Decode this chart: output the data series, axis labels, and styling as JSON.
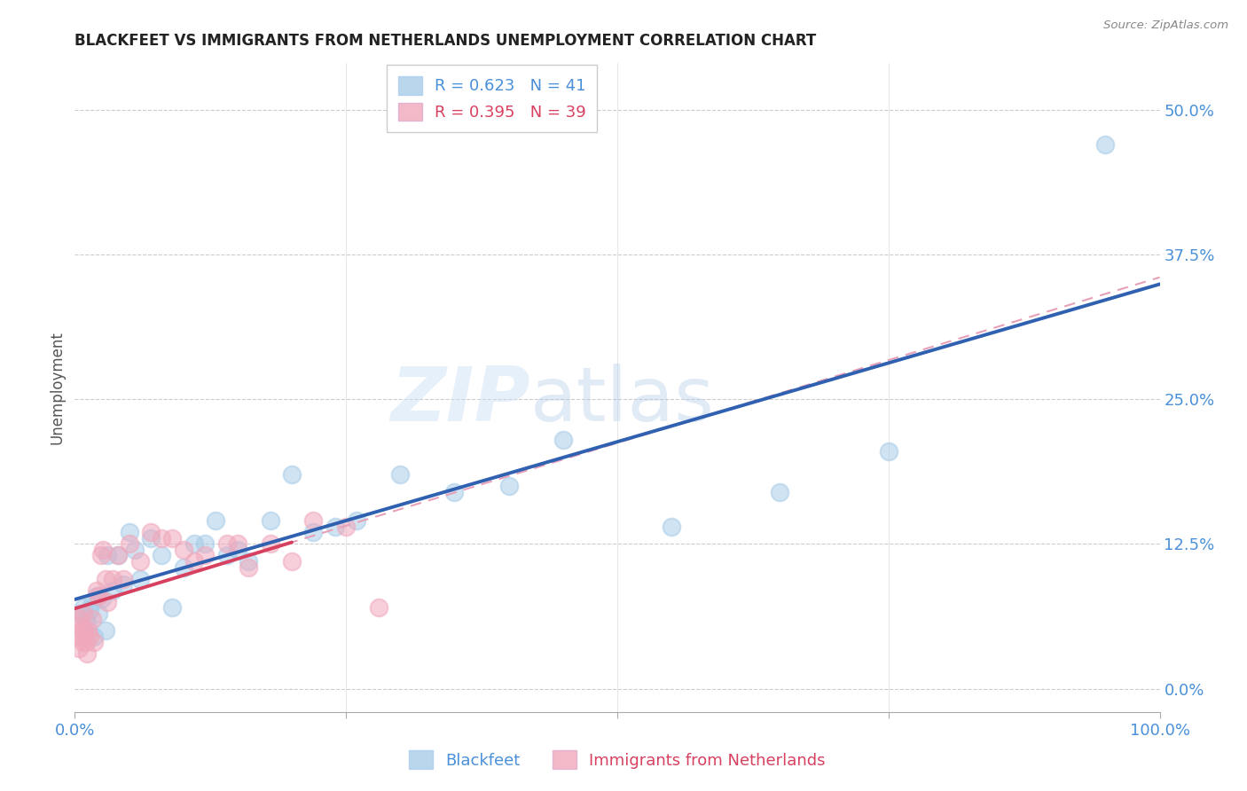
{
  "title": "BLACKFEET VS IMMIGRANTS FROM NETHERLANDS UNEMPLOYMENT CORRELATION CHART",
  "source": "Source: ZipAtlas.com",
  "ylabel": "Unemployment",
  "ytick_vals": [
    0.0,
    12.5,
    25.0,
    37.5,
    50.0
  ],
  "xlim": [
    0,
    100
  ],
  "ylim": [
    -2,
    54
  ],
  "watermark_zip": "ZIP",
  "watermark_atlas": "atlas",
  "legend_blue_r": "0.623",
  "legend_blue_n": "41",
  "legend_pink_r": "0.395",
  "legend_pink_n": "39",
  "legend_label_blue": "Blackfeet",
  "legend_label_pink": "Immigrants from Netherlands",
  "blue_color": "#a8cce8",
  "pink_color": "#f0a8bc",
  "blue_line_color": "#3060b0",
  "pink_line_color": "#d84060",
  "pink_dash_color": "#e8a0b8",
  "blue_scatter": [
    [
      0.5,
      6.5
    ],
    [
      0.8,
      7.0
    ],
    [
      1.0,
      6.0
    ],
    [
      1.2,
      5.5
    ],
    [
      1.4,
      6.8
    ],
    [
      1.6,
      7.5
    ],
    [
      1.8,
      4.5
    ],
    [
      2.0,
      8.0
    ],
    [
      2.2,
      6.5
    ],
    [
      2.5,
      7.8
    ],
    [
      2.8,
      5.0
    ],
    [
      3.0,
      11.5
    ],
    [
      3.5,
      8.5
    ],
    [
      4.0,
      11.5
    ],
    [
      4.5,
      9.0
    ],
    [
      5.0,
      13.5
    ],
    [
      5.5,
      12.0
    ],
    [
      6.0,
      9.5
    ],
    [
      7.0,
      13.0
    ],
    [
      8.0,
      11.5
    ],
    [
      9.0,
      7.0
    ],
    [
      10.0,
      10.5
    ],
    [
      11.0,
      12.5
    ],
    [
      12.0,
      12.5
    ],
    [
      13.0,
      14.5
    ],
    [
      14.0,
      11.5
    ],
    [
      15.0,
      12.0
    ],
    [
      16.0,
      11.0
    ],
    [
      18.0,
      14.5
    ],
    [
      20.0,
      18.5
    ],
    [
      22.0,
      13.5
    ],
    [
      24.0,
      14.0
    ],
    [
      26.0,
      14.5
    ],
    [
      30.0,
      18.5
    ],
    [
      35.0,
      17.0
    ],
    [
      40.0,
      17.5
    ],
    [
      45.0,
      21.5
    ],
    [
      55.0,
      14.0
    ],
    [
      65.0,
      17.0
    ],
    [
      75.0,
      20.5
    ],
    [
      95.0,
      47.0
    ]
  ],
  "pink_scatter": [
    [
      0.2,
      5.5
    ],
    [
      0.3,
      4.5
    ],
    [
      0.4,
      3.5
    ],
    [
      0.5,
      6.0
    ],
    [
      0.6,
      5.0
    ],
    [
      0.7,
      4.0
    ],
    [
      0.8,
      6.5
    ],
    [
      0.9,
      5.0
    ],
    [
      1.0,
      4.0
    ],
    [
      1.1,
      3.0
    ],
    [
      1.2,
      5.0
    ],
    [
      1.4,
      4.5
    ],
    [
      1.6,
      6.0
    ],
    [
      1.8,
      4.0
    ],
    [
      2.0,
      8.5
    ],
    [
      2.2,
      8.0
    ],
    [
      2.4,
      11.5
    ],
    [
      2.6,
      12.0
    ],
    [
      2.8,
      9.5
    ],
    [
      3.0,
      7.5
    ],
    [
      3.5,
      9.5
    ],
    [
      4.0,
      11.5
    ],
    [
      4.5,
      9.5
    ],
    [
      5.0,
      12.5
    ],
    [
      6.0,
      11.0
    ],
    [
      7.0,
      13.5
    ],
    [
      8.0,
      13.0
    ],
    [
      9.0,
      13.0
    ],
    [
      10.0,
      12.0
    ],
    [
      11.0,
      11.0
    ],
    [
      12.0,
      11.5
    ],
    [
      14.0,
      12.5
    ],
    [
      15.0,
      12.5
    ],
    [
      16.0,
      10.5
    ],
    [
      18.0,
      12.5
    ],
    [
      20.0,
      11.0
    ],
    [
      22.0,
      14.5
    ],
    [
      25.0,
      14.0
    ],
    [
      28.0,
      7.0
    ]
  ]
}
